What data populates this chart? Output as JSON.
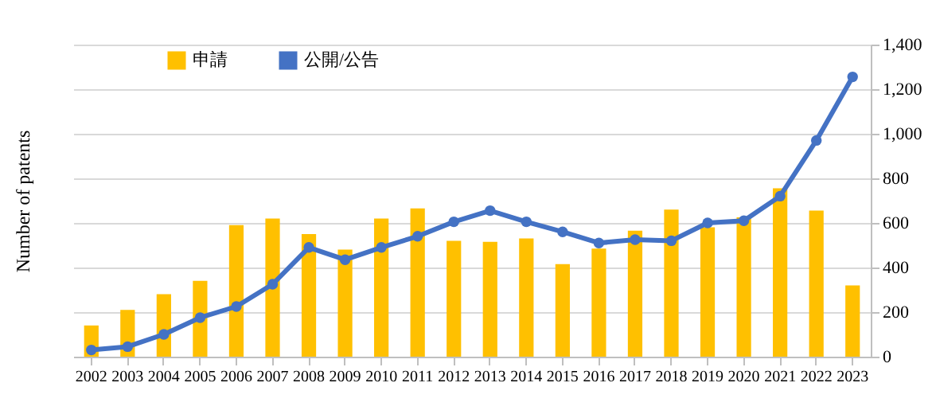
{
  "chart_data": {
    "type": "bar",
    "ylabel": "Number of patents",
    "categories": [
      "2002",
      "2003",
      "2004",
      "2005",
      "2006",
      "2007",
      "2008",
      "2009",
      "2010",
      "2011",
      "2012",
      "2013",
      "2014",
      "2015",
      "2016",
      "2017",
      "2018",
      "2019",
      "2020",
      "2021",
      "2022",
      "2023"
    ],
    "series": [
      {
        "name": "申請",
        "type": "bar",
        "color": "#ffc000",
        "values": [
          140,
          210,
          280,
          340,
          590,
          620,
          550,
          480,
          620,
          665,
          520,
          515,
          530,
          415,
          485,
          565,
          660,
          580,
          625,
          755,
          655,
          320
        ]
      },
      {
        "name": "公開/公告",
        "type": "line",
        "color": "#4472c4",
        "marker": "circle",
        "values": [
          30,
          45,
          100,
          175,
          225,
          325,
          490,
          435,
          490,
          540,
          605,
          655,
          605,
          560,
          510,
          525,
          520,
          600,
          610,
          720,
          970,
          1255
        ]
      }
    ],
    "ylim": [
      0,
      1400
    ],
    "yticks": [
      {
        "value": 0,
        "label": "0"
      },
      {
        "value": 200,
        "label": "200"
      },
      {
        "value": 400,
        "label": "400"
      },
      {
        "value": 600,
        "label": "600"
      },
      {
        "value": 800,
        "label": "800"
      },
      {
        "value": 1000,
        "label": "1,000"
      },
      {
        "value": 1200,
        "label": "1,200"
      },
      {
        "value": 1400,
        "label": "1,400"
      }
    ],
    "grid": "y",
    "legend": "top left"
  }
}
